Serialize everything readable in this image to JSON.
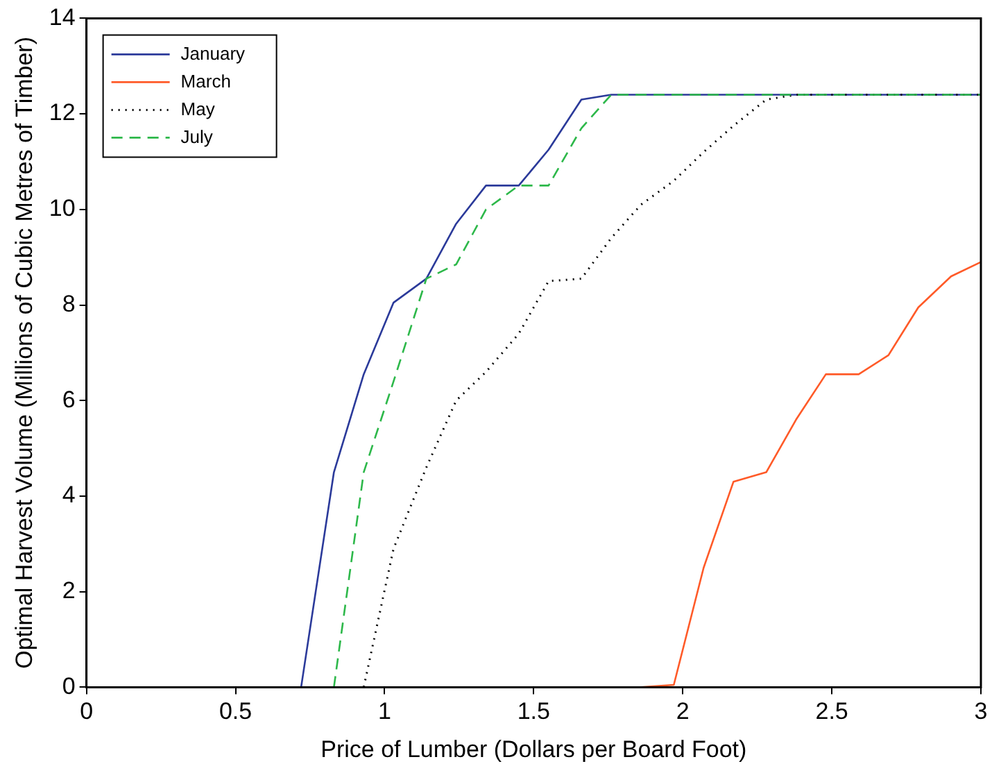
{
  "chart_data": {
    "type": "line",
    "xlabel": "Price of Lumber (Dollars per Board Foot)",
    "ylabel": "Optimal Harvest Volume (Millions of Cubic Metres of Timber)",
    "x": [
      0,
      0.1,
      0.21,
      0.31,
      0.41,
      0.52,
      0.62,
      0.72,
      0.83,
      0.93,
      1.03,
      1.14,
      1.24,
      1.34,
      1.45,
      1.55,
      1.66,
      1.76,
      1.86,
      1.97,
      2.07,
      2.17,
      2.28,
      2.38,
      2.48,
      2.59,
      2.69,
      2.79,
      2.9,
      3
    ],
    "xlim": [
      0,
      3
    ],
    "xticks": [
      0,
      0.5,
      1,
      1.5,
      2,
      2.5,
      3
    ],
    "ylim": [
      0,
      14
    ],
    "yticks": [
      0,
      2,
      4,
      6,
      8,
      10,
      12,
      14
    ],
    "grid": false,
    "legend": "top left",
    "marker": "none",
    "series": [
      {
        "name": "January",
        "color": "#2b3a9a",
        "line_style": "solid",
        "values": [
          null,
          null,
          null,
          null,
          null,
          null,
          null,
          0,
          4.5,
          6.55,
          8.05,
          8.55,
          9.7,
          10.5,
          10.5,
          11.25,
          12.3,
          12.4,
          12.4,
          12.4,
          12.4,
          12.4,
          12.4,
          12.4,
          12.4,
          12.4,
          12.4,
          12.4,
          12.4,
          12.4
        ]
      },
      {
        "name": "March",
        "color": "#ff5a28",
        "line_style": "solid",
        "values": [
          null,
          null,
          null,
          null,
          null,
          null,
          null,
          null,
          null,
          null,
          null,
          null,
          null,
          null,
          null,
          null,
          null,
          null,
          0,
          0.05,
          2.5,
          4.3,
          4.5,
          5.6,
          6.55,
          6.55,
          6.95,
          7.95,
          8.6,
          8.9
        ]
      },
      {
        "name": "May",
        "color": "#000000",
        "line_style": "dotted",
        "values": [
          0,
          0,
          0,
          0,
          0,
          0,
          0,
          0,
          0,
          0,
          2.9,
          4.6,
          6,
          6.6,
          7.4,
          8.5,
          8.55,
          9.4,
          10.1,
          10.6,
          11.2,
          11.75,
          12.3,
          12.4,
          12.4,
          12.4,
          12.4,
          12.4,
          12.4,
          12.4
        ]
      },
      {
        "name": "July",
        "color": "#2db84a",
        "line_style": "dashed",
        "values": [
          null,
          null,
          null,
          null,
          null,
          null,
          null,
          null,
          0,
          4.5,
          6.4,
          8.55,
          8.85,
          10,
          10.5,
          10.5,
          11.7,
          12.4,
          12.4,
          12.4,
          12.4,
          12.4,
          12.4,
          12.4,
          12.4,
          12.4,
          12.4,
          12.4,
          12.4,
          12.4
        ]
      }
    ]
  }
}
